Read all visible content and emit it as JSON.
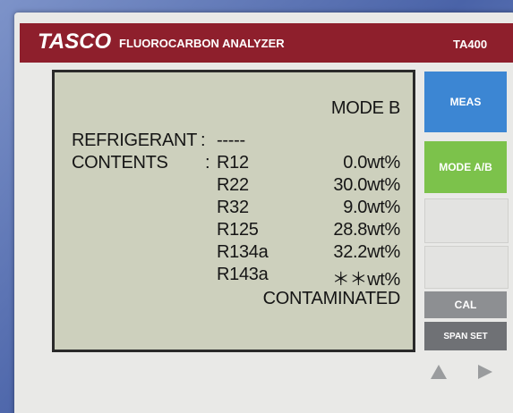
{
  "header": {
    "brand": "TASCO",
    "title": "FLUOROCARBON ANALYZER",
    "model": "TA400"
  },
  "screen": {
    "mode": "MODE B",
    "separator": ":",
    "refrigerant_label": "REFRIGERANT",
    "refrigerant_value": "-----",
    "contents_label": "CONTENTS",
    "rows": [
      [
        "R12",
        "0.0wt%"
      ],
      [
        "R22",
        "30.0wt%"
      ],
      [
        "R32",
        "9.0wt%"
      ],
      [
        "R125",
        "28.8wt%"
      ],
      [
        "R134a",
        "32.2wt%"
      ],
      [
        "R143a",
        "＊＊wt%"
      ]
    ],
    "status": "CONTAMINATED"
  },
  "buttons": [
    "MEAS",
    "MODE A/B",
    "CAL",
    "SPAN SET"
  ]
}
